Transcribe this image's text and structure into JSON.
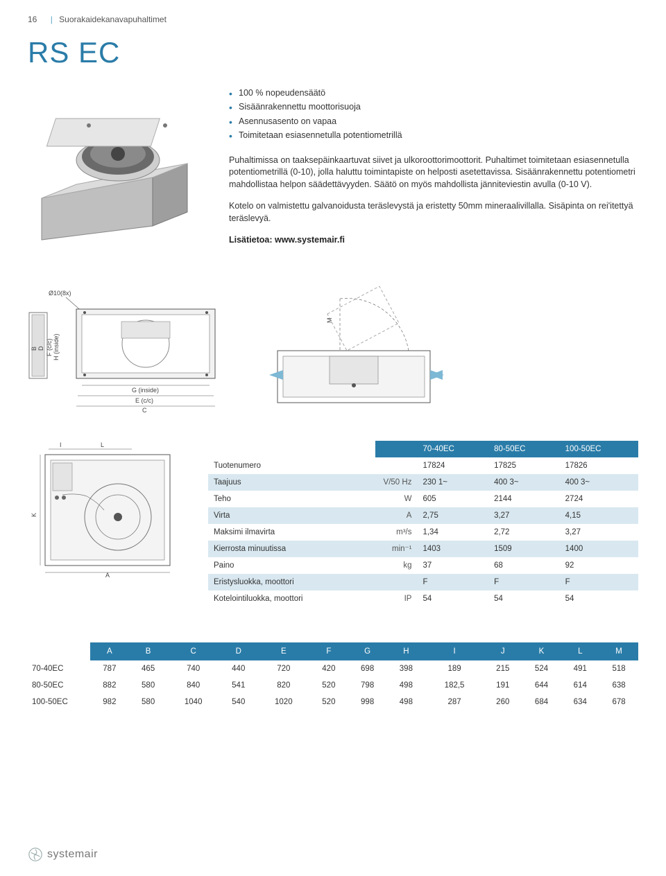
{
  "header": {
    "page_number": "16",
    "section": "Suorakaidekanavapuhaltimet"
  },
  "title": "RS EC",
  "bullets": [
    "100 % nopeudensäätö",
    "Sisäänrakennettu moottorisuoja",
    "Asennusasento on vapaa",
    "Toimitetaan esiasennetulla potentiometrillä"
  ],
  "paragraphs": [
    "Puhaltimissa on taaksepäinkaartuvat siivet ja ulkoroottorimoottorit. Puhaltimet toimitetaan esiasennetulla potentiometrillä (0-10), jolla haluttu toimintapiste on helposti asetettavissa. Sisäänrakennettu potentiometri mahdollistaa helpon säädettävyyden. Säätö on myös mahdollista jänniteviestin avulla (0-10 V).",
    "Kotelo on valmistettu galvanoidusta teräslevystä ja eristetty 50mm mineraalivillalla. Sisäpinta on rei'itettyä teräslevyä."
  ],
  "more_info": "Lisätietoa: www.systemair.fi",
  "diagram_labels": {
    "holes": "Ø10(8x)",
    "b": "B",
    "d": "D",
    "f": "F (c/c)",
    "h": "H (inside)",
    "g": "G (inside)",
    "e": "E (c/c)",
    "c": "C",
    "m": "M",
    "i": "I",
    "l": "L",
    "k": "K",
    "a": "A"
  },
  "spec_table": {
    "columns": [
      "70-40EC",
      "80-50EC",
      "100-50EC"
    ],
    "rows": [
      {
        "label": "Tuotenumero",
        "unit": "",
        "vals": [
          "17824",
          "17825",
          "17826"
        ]
      },
      {
        "label": "Taajuus",
        "unit": "V/50 Hz",
        "vals": [
          "230 1~",
          "400 3~",
          "400 3~"
        ]
      },
      {
        "label": "Teho",
        "unit": "W",
        "vals": [
          "605",
          "2144",
          "2724"
        ]
      },
      {
        "label": "Virta",
        "unit": "A",
        "vals": [
          "2,75",
          "3,27",
          "4,15"
        ]
      },
      {
        "label": "Maksimi ilmavirta",
        "unit": "m³/s",
        "vals": [
          "1,34",
          "2,72",
          "3,27"
        ]
      },
      {
        "label": "Kierrosta minuutissa",
        "unit": "min⁻¹",
        "vals": [
          "1403",
          "1509",
          "1400"
        ]
      },
      {
        "label": "Paino",
        "unit": "kg",
        "vals": [
          "37",
          "68",
          "92"
        ]
      },
      {
        "label": "Eristysluokka, moottori",
        "unit": "",
        "vals": [
          "F",
          "F",
          "F"
        ]
      },
      {
        "label": "Kotelointiluokka, moottori",
        "unit": "IP",
        "vals": [
          "54",
          "54",
          "54"
        ]
      }
    ]
  },
  "dims_table": {
    "columns": [
      "A",
      "B",
      "C",
      "D",
      "E",
      "F",
      "G",
      "H",
      "I",
      "J",
      "K",
      "L",
      "M"
    ],
    "rows": [
      {
        "label": "70-40EC",
        "vals": [
          "787",
          "465",
          "740",
          "440",
          "720",
          "420",
          "698",
          "398",
          "189",
          "215",
          "524",
          "491",
          "518"
        ]
      },
      {
        "label": "80-50EC",
        "vals": [
          "882",
          "580",
          "840",
          "541",
          "820",
          "520",
          "798",
          "498",
          "182,5",
          "191",
          "644",
          "614",
          "638"
        ]
      },
      {
        "label": "100-50EC",
        "vals": [
          "982",
          "580",
          "1040",
          "540",
          "1020",
          "520",
          "998",
          "498",
          "287",
          "260",
          "684",
          "634",
          "678"
        ]
      }
    ]
  },
  "footer": {
    "brand": "systemair"
  },
  "colors": {
    "accent": "#2a7ca8",
    "row_alt": "#d9e8f0",
    "arrow": "#7db8d4"
  }
}
